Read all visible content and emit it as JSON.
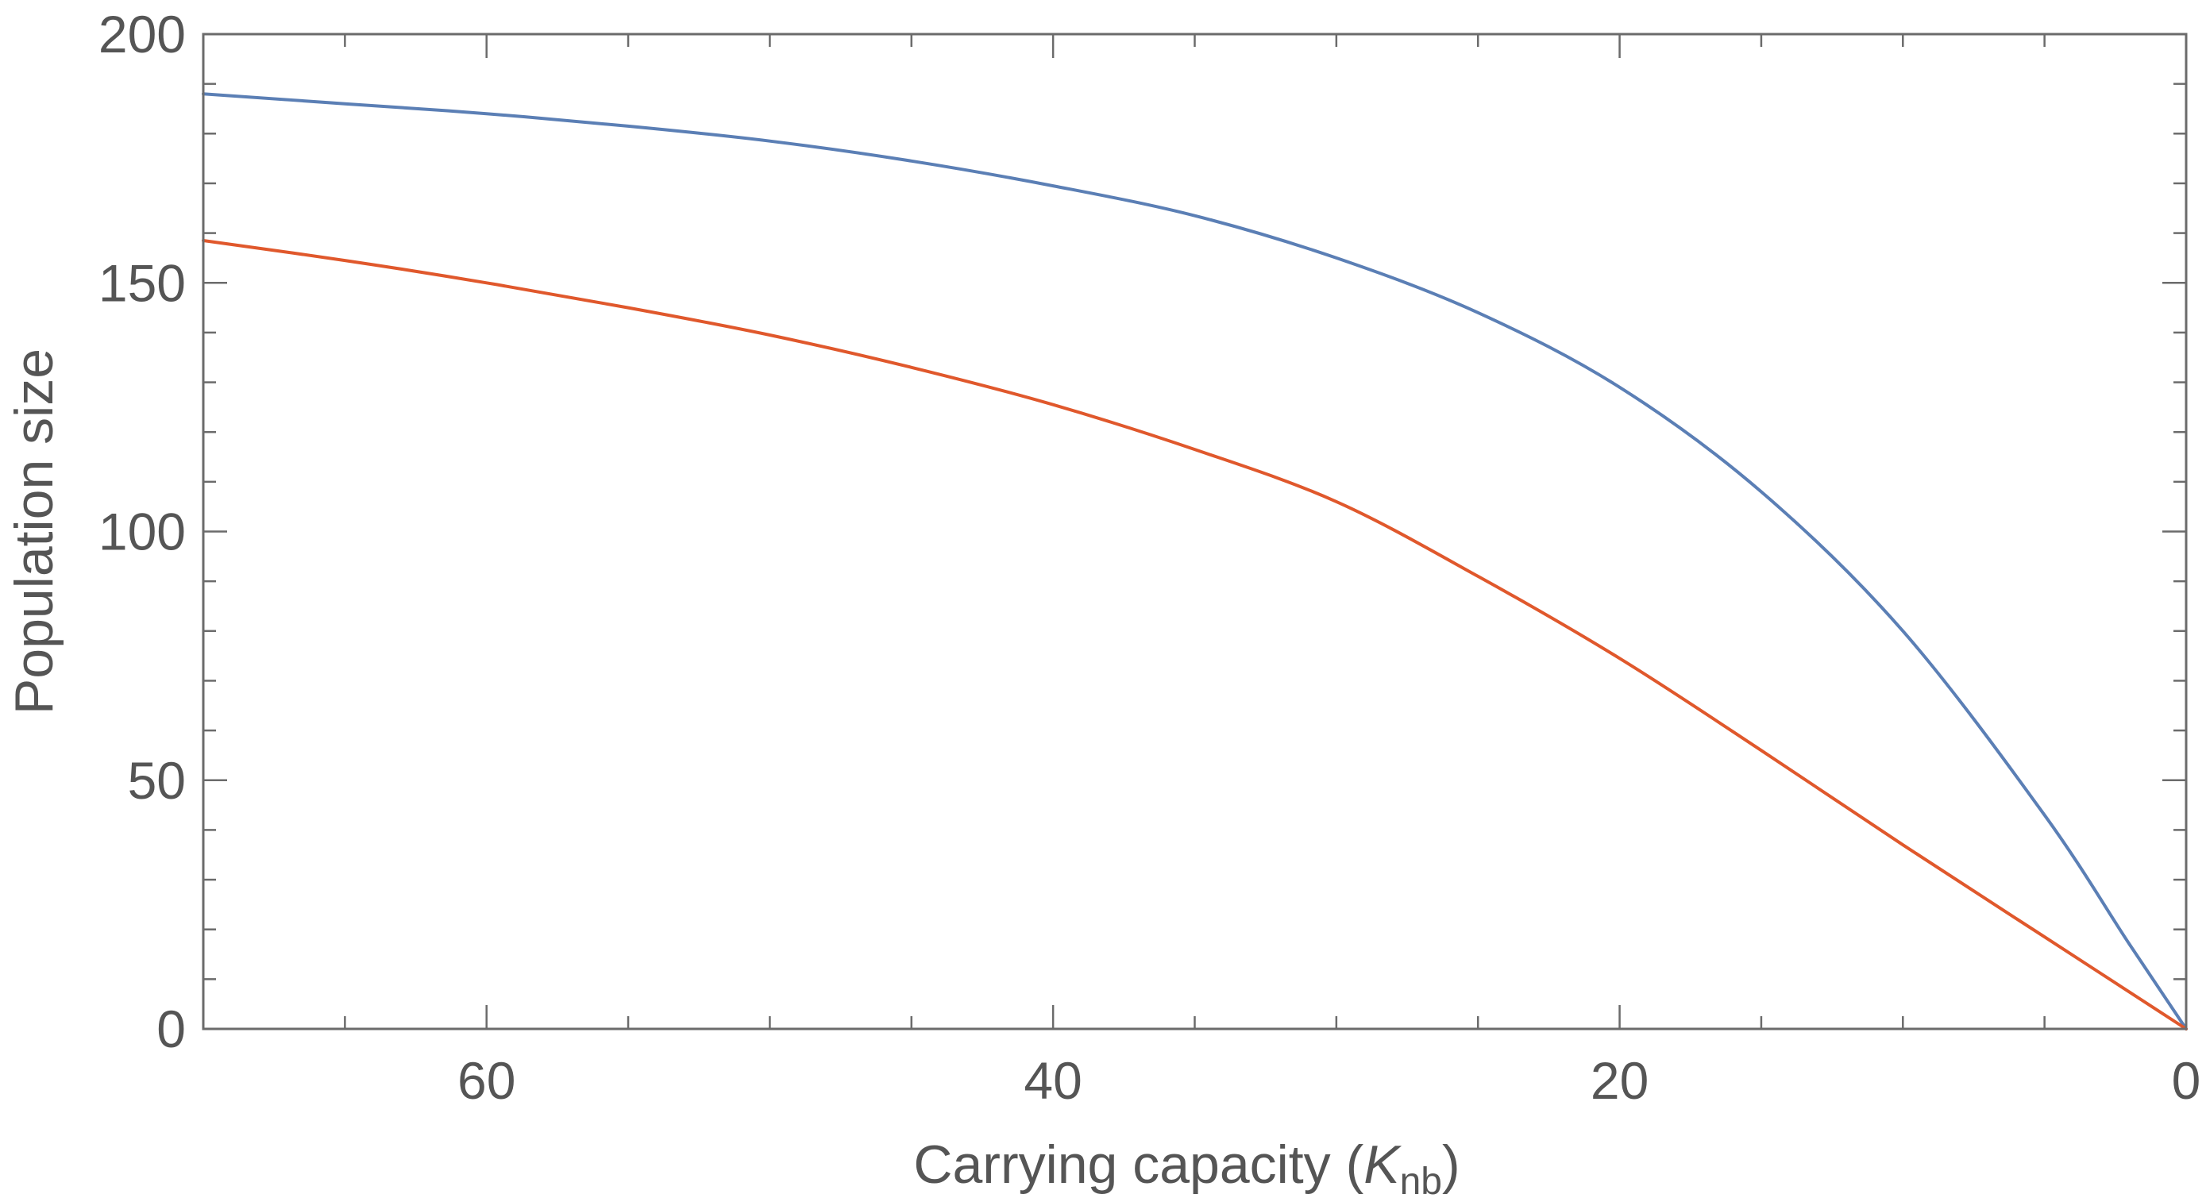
{
  "chart_data": {
    "type": "line",
    "title": "",
    "xlabel_main": "Carrying capacity (",
    "xlabel_var": "K",
    "xlabel_sub": "nb",
    "xlabel_close": ")",
    "ylabel": "Population size",
    "x_reversed": true,
    "xlim": [
      70,
      0
    ],
    "ylim": [
      0,
      200
    ],
    "x_major_ticks": [
      60,
      40,
      20,
      0
    ],
    "x_minor_ticks": [
      65,
      55,
      50,
      45,
      35,
      30,
      25,
      15,
      10,
      5
    ],
    "y_major_ticks": [
      0,
      50,
      100,
      150,
      200
    ],
    "y_minor_ticks": [
      10,
      20,
      30,
      40,
      60,
      70,
      80,
      90,
      110,
      120,
      130,
      140,
      160,
      170,
      180,
      190
    ],
    "x_tick_labels": [
      "60",
      "40",
      "20",
      "0"
    ],
    "y_tick_labels": [
      "0",
      "50",
      "100",
      "150",
      "200"
    ],
    "grid": false,
    "series": [
      {
        "color": "#5b7fb5",
        "x": [
          70,
          65,
          60,
          55,
          50,
          45,
          40,
          35,
          30,
          25,
          20,
          15,
          10,
          5,
          2,
          0
        ],
        "y": [
          188,
          186,
          184,
          181.5,
          178.5,
          174.5,
          169.5,
          163.5,
          155,
          144,
          129,
          108,
          80,
          43,
          17,
          0
        ]
      },
      {
        "color": "#e0582c",
        "x": [
          70,
          65,
          60,
          55,
          50,
          45,
          40,
          35,
          30,
          25,
          20,
          15,
          10,
          5,
          0
        ],
        "y": [
          158.5,
          154.5,
          150,
          145,
          139.5,
          133,
          125.5,
          116.5,
          106,
          91,
          74.5,
          56,
          37,
          18.5,
          0
        ]
      }
    ]
  }
}
